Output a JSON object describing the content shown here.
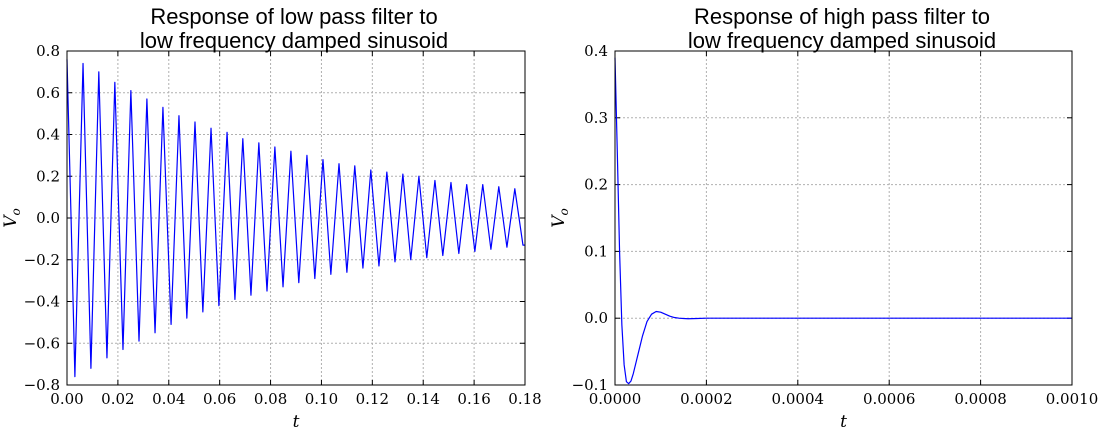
{
  "chart_data": [
    {
      "type": "line",
      "title_lines": [
        "Response of low pass filter to",
        "low frequency damped sinusoid"
      ],
      "xlabel": "t",
      "ylabel_main": "V",
      "ylabel_sub": "o",
      "xlim": [
        0.0,
        0.18
      ],
      "ylim": [
        -0.8,
        0.8
      ],
      "xticks": [
        "0.00",
        "0.02",
        "0.04",
        "0.06",
        "0.08",
        "0.10",
        "0.12",
        "0.14",
        "0.16",
        "0.18"
      ],
      "yticks": [
        "−0.8",
        "−0.6",
        "−0.4",
        "−0.2",
        "0.0",
        "0.2",
        "0.4",
        "0.6",
        "0.8"
      ],
      "grid": true,
      "line_color": "#0000ff",
      "series": [
        {
          "x": [
            0.0,
            0.0016,
            0.0031,
            0.0063,
            0.0094,
            0.0125,
            0.0157,
            0.0188,
            0.022,
            0.0251,
            0.0283,
            0.0314,
            0.0346,
            0.0377,
            0.0409,
            0.044,
            0.0471,
            0.0503,
            0.0534,
            0.0566,
            0.0597,
            0.0629,
            0.066,
            0.0691,
            0.0723,
            0.0754,
            0.0786,
            0.0817,
            0.0849,
            0.088,
            0.0911,
            0.0943,
            0.0974,
            0.1006,
            0.1037,
            0.1069,
            0.11,
            0.1131,
            0.1163,
            0.1194,
            0.1226,
            0.1257,
            0.1289,
            0.132,
            0.1351,
            0.1383,
            0.1414,
            0.1446,
            0.1477,
            0.1509,
            0.154,
            0.1571,
            0.1603,
            0.1634,
            0.1666,
            0.1697,
            0.1729,
            0.176,
            0.1792,
            0.18
          ],
          "y": [
            0.76,
            0.0,
            -0.76,
            0.74,
            -0.72,
            0.7,
            -0.67,
            0.65,
            -0.63,
            0.61,
            -0.59,
            0.57,
            -0.55,
            0.53,
            -0.51,
            0.49,
            -0.48,
            0.46,
            -0.45,
            0.43,
            -0.42,
            0.41,
            -0.39,
            0.38,
            -0.37,
            0.36,
            -0.35,
            0.34,
            -0.33,
            0.32,
            -0.31,
            0.3,
            -0.29,
            0.28,
            -0.27,
            0.26,
            -0.26,
            0.25,
            -0.24,
            0.23,
            -0.23,
            0.22,
            -0.21,
            0.21,
            -0.2,
            0.2,
            -0.19,
            0.18,
            -0.18,
            0.17,
            -0.17,
            0.16,
            -0.16,
            0.16,
            -0.15,
            0.15,
            -0.14,
            0.14,
            -0.13,
            -0.13
          ]
        }
      ]
    },
    {
      "type": "line",
      "title_lines": [
        "Response of high pass filter to",
        "low frequency damped sinusoid"
      ],
      "xlabel": "t",
      "ylabel_main": "V",
      "ylabel_sub": "o",
      "xlim": [
        0.0,
        0.001
      ],
      "ylim": [
        -0.1,
        0.4
      ],
      "xticks": [
        "0.0000",
        "0.0002",
        "0.0004",
        "0.0006",
        "0.0008",
        "0.0010"
      ],
      "yticks": [
        "−0.1",
        "0.0",
        "0.1",
        "0.2",
        "0.3",
        "0.4"
      ],
      "grid": true,
      "line_color": "#0000ff",
      "series": [
        {
          "x": [
            0.0,
            5e-06,
            1e-05,
            1.5e-05,
            2e-05,
            2.5e-05,
            3e-05,
            3.5e-05,
            4e-05,
            5e-05,
            6e-05,
            7e-05,
            8e-05,
            9e-05,
            0.0001,
            0.00011,
            0.00012,
            0.00013,
            0.00014,
            0.00015,
            0.00016,
            0.00018,
            0.0002,
            0.00025,
            0.0003,
            0.0004,
            0.0006,
            0.0008,
            0.001
          ],
          "y": [
            0.39,
            0.25,
            0.1,
            -0.01,
            -0.07,
            -0.095,
            -0.098,
            -0.094,
            -0.083,
            -0.055,
            -0.027,
            -0.005,
            0.006,
            0.01,
            0.009,
            0.006,
            0.003,
            0.001,
            0.0,
            -0.0005,
            -0.0008,
            -0.0005,
            0.0,
            0.0,
            0.0,
            0.0,
            0.0,
            0.0,
            0.0
          ]
        }
      ]
    }
  ]
}
